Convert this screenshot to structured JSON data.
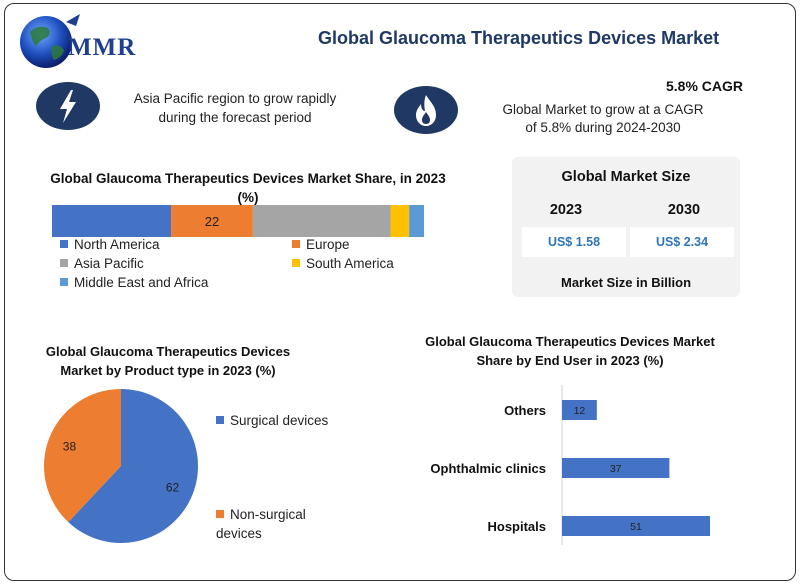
{
  "header": {
    "logo_text": "MMR",
    "title": "Global Glaucoma Therapeutics Devices Market"
  },
  "highlights": {
    "region_text_line1": "Asia Pacific region to grow rapidly",
    "region_text_line2": "during the forecast period",
    "region_icon": "lightning-bolt-icon",
    "cagr_label": "5.8% CAGR",
    "cagr_text_line1": "Global Market to grow at a CAGR",
    "cagr_text_line2": "of 5.8% during 2024-2030",
    "cagr_icon": "flame-icon"
  },
  "market_size": {
    "title": "Global Market Size",
    "year1": "2023",
    "year2": "2030",
    "value1": "US$ 1.58",
    "value2": "US$ 2.34",
    "note": "Market Size in Billion"
  },
  "colors": {
    "navy": "#1f3864",
    "blue": "#4472c4",
    "orange": "#ed7d31",
    "gray": "#a5a5a5",
    "yellow": "#ffc000",
    "lightblue": "#5b9bd5"
  },
  "chart_data": [
    {
      "type": "bar",
      "orientation": "stacked-horizontal",
      "title": "Global Glaucoma Therapeutics Devices Market Share, in 2023 (%)",
      "series": [
        {
          "name": "North America",
          "value": 32,
          "color": "#4472c4",
          "label": ""
        },
        {
          "name": "Europe",
          "value": 22,
          "color": "#ed7d31",
          "label": "22"
        },
        {
          "name": "Asia Pacific",
          "value": 37,
          "color": "#a5a5a5",
          "label": ""
        },
        {
          "name": "South America",
          "value": 5,
          "color": "#ffc000",
          "label": ""
        },
        {
          "name": "Middle East and Africa",
          "value": 4,
          "color": "#5b9bd5",
          "label": ""
        }
      ],
      "legend_position": "bottom"
    },
    {
      "type": "pie",
      "title": "Global Glaucoma Therapeutics Devices Market by Product type in 2023 (%)",
      "slices": [
        {
          "name": "Surgical devices",
          "value": 62,
          "color": "#4472c4"
        },
        {
          "name": "Non-surgical devices",
          "value": 38,
          "color": "#ed7d31"
        }
      ],
      "legend_position": "right"
    },
    {
      "type": "bar",
      "orientation": "horizontal",
      "title": "Global Glaucoma Therapeutics Devices Market Share by End User in 2023 (%)",
      "categories": [
        "Others",
        "Ophthalmic clinics",
        "Hospitals"
      ],
      "values": [
        12,
        37,
        51
      ],
      "color": "#4472c4",
      "xlim": [
        0,
        51
      ]
    }
  ]
}
